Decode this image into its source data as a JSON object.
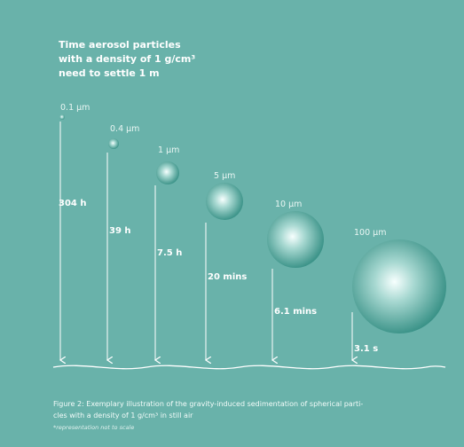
{
  "title_lines": [
    "Time aerosol particles",
    "with a density of 1 g/cm³",
    "need to settle 1 m"
  ],
  "particles": [
    {
      "size": "0.1 µm",
      "time": "304 h"
    },
    {
      "size": "0.4 µm",
      "time": "39 h"
    },
    {
      "size": "1 µm",
      "time": "7.5 h"
    },
    {
      "size": "5 µm",
      "time": "20 mins"
    },
    {
      "size": "10 µm",
      "time": "6.1 mins"
    },
    {
      "size": "100 µm",
      "time": "3.1 s"
    }
  ],
  "caption_lines": [
    "Figure 2: Exemplary illustration of the gravity-induced sedimentation of spherical parti-",
    "cles with a density of 1 g/cm³ in still air"
  ],
  "note": "*representation not to scale",
  "colors": {
    "background": "#69b2aa",
    "sphere_light": "#f4fffd",
    "sphere_dark": "#2c8a7f",
    "line": "#ffffff"
  }
}
